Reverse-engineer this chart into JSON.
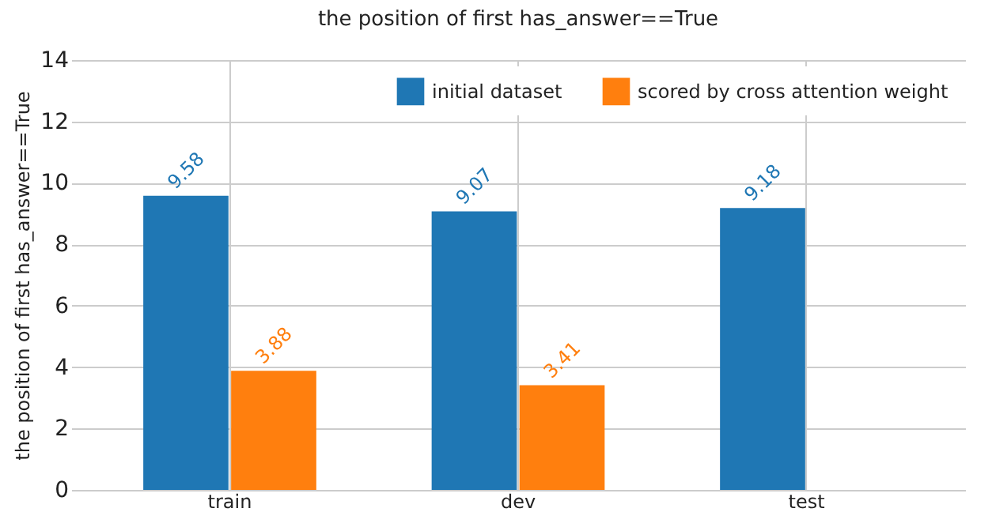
{
  "chart_data": {
    "type": "bar",
    "title": "the position of first has_answer==True",
    "ylabel": "the position of first has_answer==True",
    "categories": [
      "train",
      "dev",
      "test"
    ],
    "series": [
      {
        "name": "initial dataset",
        "color": "#1f77b4",
        "values": [
          9.58,
          9.07,
          9.18
        ]
      },
      {
        "name": "scored by cross attention weight",
        "color": "#ff7f0e",
        "values": [
          3.88,
          3.41,
          null
        ]
      }
    ],
    "ylim": [
      0,
      14
    ],
    "yticks": [
      0,
      2,
      4,
      6,
      8,
      10,
      12,
      14
    ],
    "grid": true,
    "legend": "top right",
    "data_labels": true
  }
}
